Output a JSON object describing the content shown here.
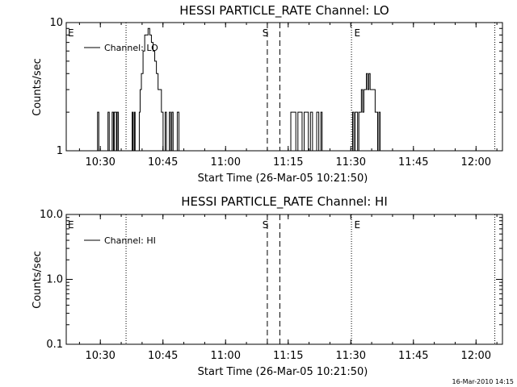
{
  "window_title": "HESSI PARTICLE_RATE",
  "footer": {
    "timestamp": "16-Mar-2010 14:15"
  },
  "chart_data": [
    {
      "type": "line",
      "title": "HESSI PARTICLE_RATE Channel: LO",
      "xlabel": "Start Time (26-Mar-05 10:21:50)",
      "ylabel": "Counts/sec",
      "yscale": "log",
      "ylim": [
        1,
        10
      ],
      "ytick_values": [
        1,
        10
      ],
      "ytick_labels": [
        "1",
        "10"
      ],
      "x_unit": "minutes after 10:21:50",
      "xlim": [
        0,
        104.5
      ],
      "xtick_values": [
        8.17,
        23.17,
        38.17,
        53.17,
        68.17,
        83.17,
        98.17
      ],
      "xtick_labels": [
        "10:30",
        "10:45",
        "11:00",
        "11:15",
        "11:30",
        "11:45",
        "12:00"
      ],
      "grid": false,
      "legend": {
        "position": "top-left",
        "entries": [
          "Channel: LO"
        ]
      },
      "series": [
        {
          "name": "Channel: LO",
          "color": "#000000",
          "x": [
            0,
            7.3,
            7.5,
            7.8,
            8.0,
            9.8,
            10.0,
            10.3,
            11.0,
            11.3,
            11.5,
            12.0,
            12.2,
            12.5,
            13.5,
            15.5,
            15.8,
            16.0,
            16.3,
            16.5,
            17.3,
            17.5,
            17.7,
            18.0,
            18.4,
            18.8,
            19.2,
            19.6,
            20.0,
            20.4,
            20.8,
            21.2,
            21.6,
            22.0,
            22.4,
            22.8,
            23.2,
            23.7,
            24.0,
            24.3,
            24.7,
            25.0,
            25.3,
            25.6,
            26.0,
            26.2,
            26.4,
            26.6,
            27.0,
            27.3,
            27.6,
            28.0,
            45.0,
            53.2,
            53.5,
            53.8,
            54.0,
            54.5,
            55.0,
            55.5,
            56.0,
            56.5,
            57.0,
            57.5,
            58.0,
            58.5,
            59.0,
            59.5,
            60.0,
            60.5,
            61.0,
            61.3,
            61.5,
            67.5,
            68.3,
            68.6,
            68.9,
            69.2,
            69.5,
            69.8,
            70.1,
            70.4,
            70.7,
            71.0,
            71.3,
            71.6,
            71.9,
            72.2,
            72.5,
            72.8,
            73.1,
            73.4,
            73.7,
            74.0,
            74.3,
            74.6,
            74.9,
            75.2,
            75.5,
            75.8,
            76.1,
            76.4,
            76.7,
            77.0,
            104.5
          ],
          "y": [
            1,
            1,
            2,
            1,
            1,
            1,
            2,
            1,
            2,
            1,
            2,
            1,
            2,
            1,
            1,
            1,
            2,
            1,
            2,
            1,
            1,
            2,
            3,
            4,
            6,
            8,
            8,
            9,
            8,
            7,
            6,
            5,
            4,
            3,
            3,
            2,
            1,
            2,
            1,
            1,
            2,
            1,
            2,
            1,
            1,
            1,
            1,
            2,
            1,
            1,
            1,
            1,
            1,
            1,
            1,
            2,
            2,
            2,
            1,
            2,
            2,
            1,
            2,
            2,
            1,
            2,
            1,
            1,
            2,
            1,
            2,
            1,
            1,
            1,
            1,
            2,
            1,
            2,
            2,
            1,
            2,
            2,
            3,
            2,
            3,
            3,
            4,
            3,
            4,
            3,
            3,
            3,
            3,
            2,
            2,
            1,
            2,
            1,
            1,
            1,
            1,
            1,
            1,
            1,
            1
          ]
        },
        {
          "name": "flag-lines",
          "dotted_x": [
            14.33,
            68.33,
            102.67
          ],
          "dashed_x": [
            48.17,
            51.17
          ]
        }
      ],
      "markers": [
        {
          "label": "E",
          "x": 0
        },
        {
          "label": "S",
          "x": 46.6
        },
        {
          "label": "E",
          "x": 68.6
        }
      ]
    },
    {
      "type": "line",
      "title": "HESSI PARTICLE_RATE Channel: HI",
      "xlabel": "Start Time (26-Mar-05 10:21:50)",
      "ylabel": "Counts/sec",
      "yscale": "log",
      "ylim": [
        0.1,
        10
      ],
      "ytick_values": [
        0.1,
        1,
        10
      ],
      "ytick_labels": [
        "0.1",
        "1.0",
        "10.0"
      ],
      "x_unit": "minutes after 10:21:50",
      "xlim": [
        0,
        104.5
      ],
      "xtick_values": [
        8.17,
        23.17,
        38.17,
        53.17,
        68.17,
        83.17,
        98.17
      ],
      "xtick_labels": [
        "10:30",
        "10:45",
        "11:00",
        "11:15",
        "11:30",
        "11:45",
        "12:00"
      ],
      "grid": false,
      "legend": {
        "position": "top-left",
        "entries": [
          "Channel: HI"
        ]
      },
      "series": [
        {
          "name": "Channel: HI",
          "color": "#000000",
          "x": [],
          "y": []
        },
        {
          "name": "flag-lines",
          "dotted_x": [
            14.33,
            68.33,
            102.67
          ],
          "dashed_x": [
            48.17,
            51.17
          ]
        }
      ],
      "markers": [
        {
          "label": "E",
          "x": 0
        },
        {
          "label": "S",
          "x": 46.6
        },
        {
          "label": "E",
          "x": 68.6
        }
      ]
    }
  ]
}
